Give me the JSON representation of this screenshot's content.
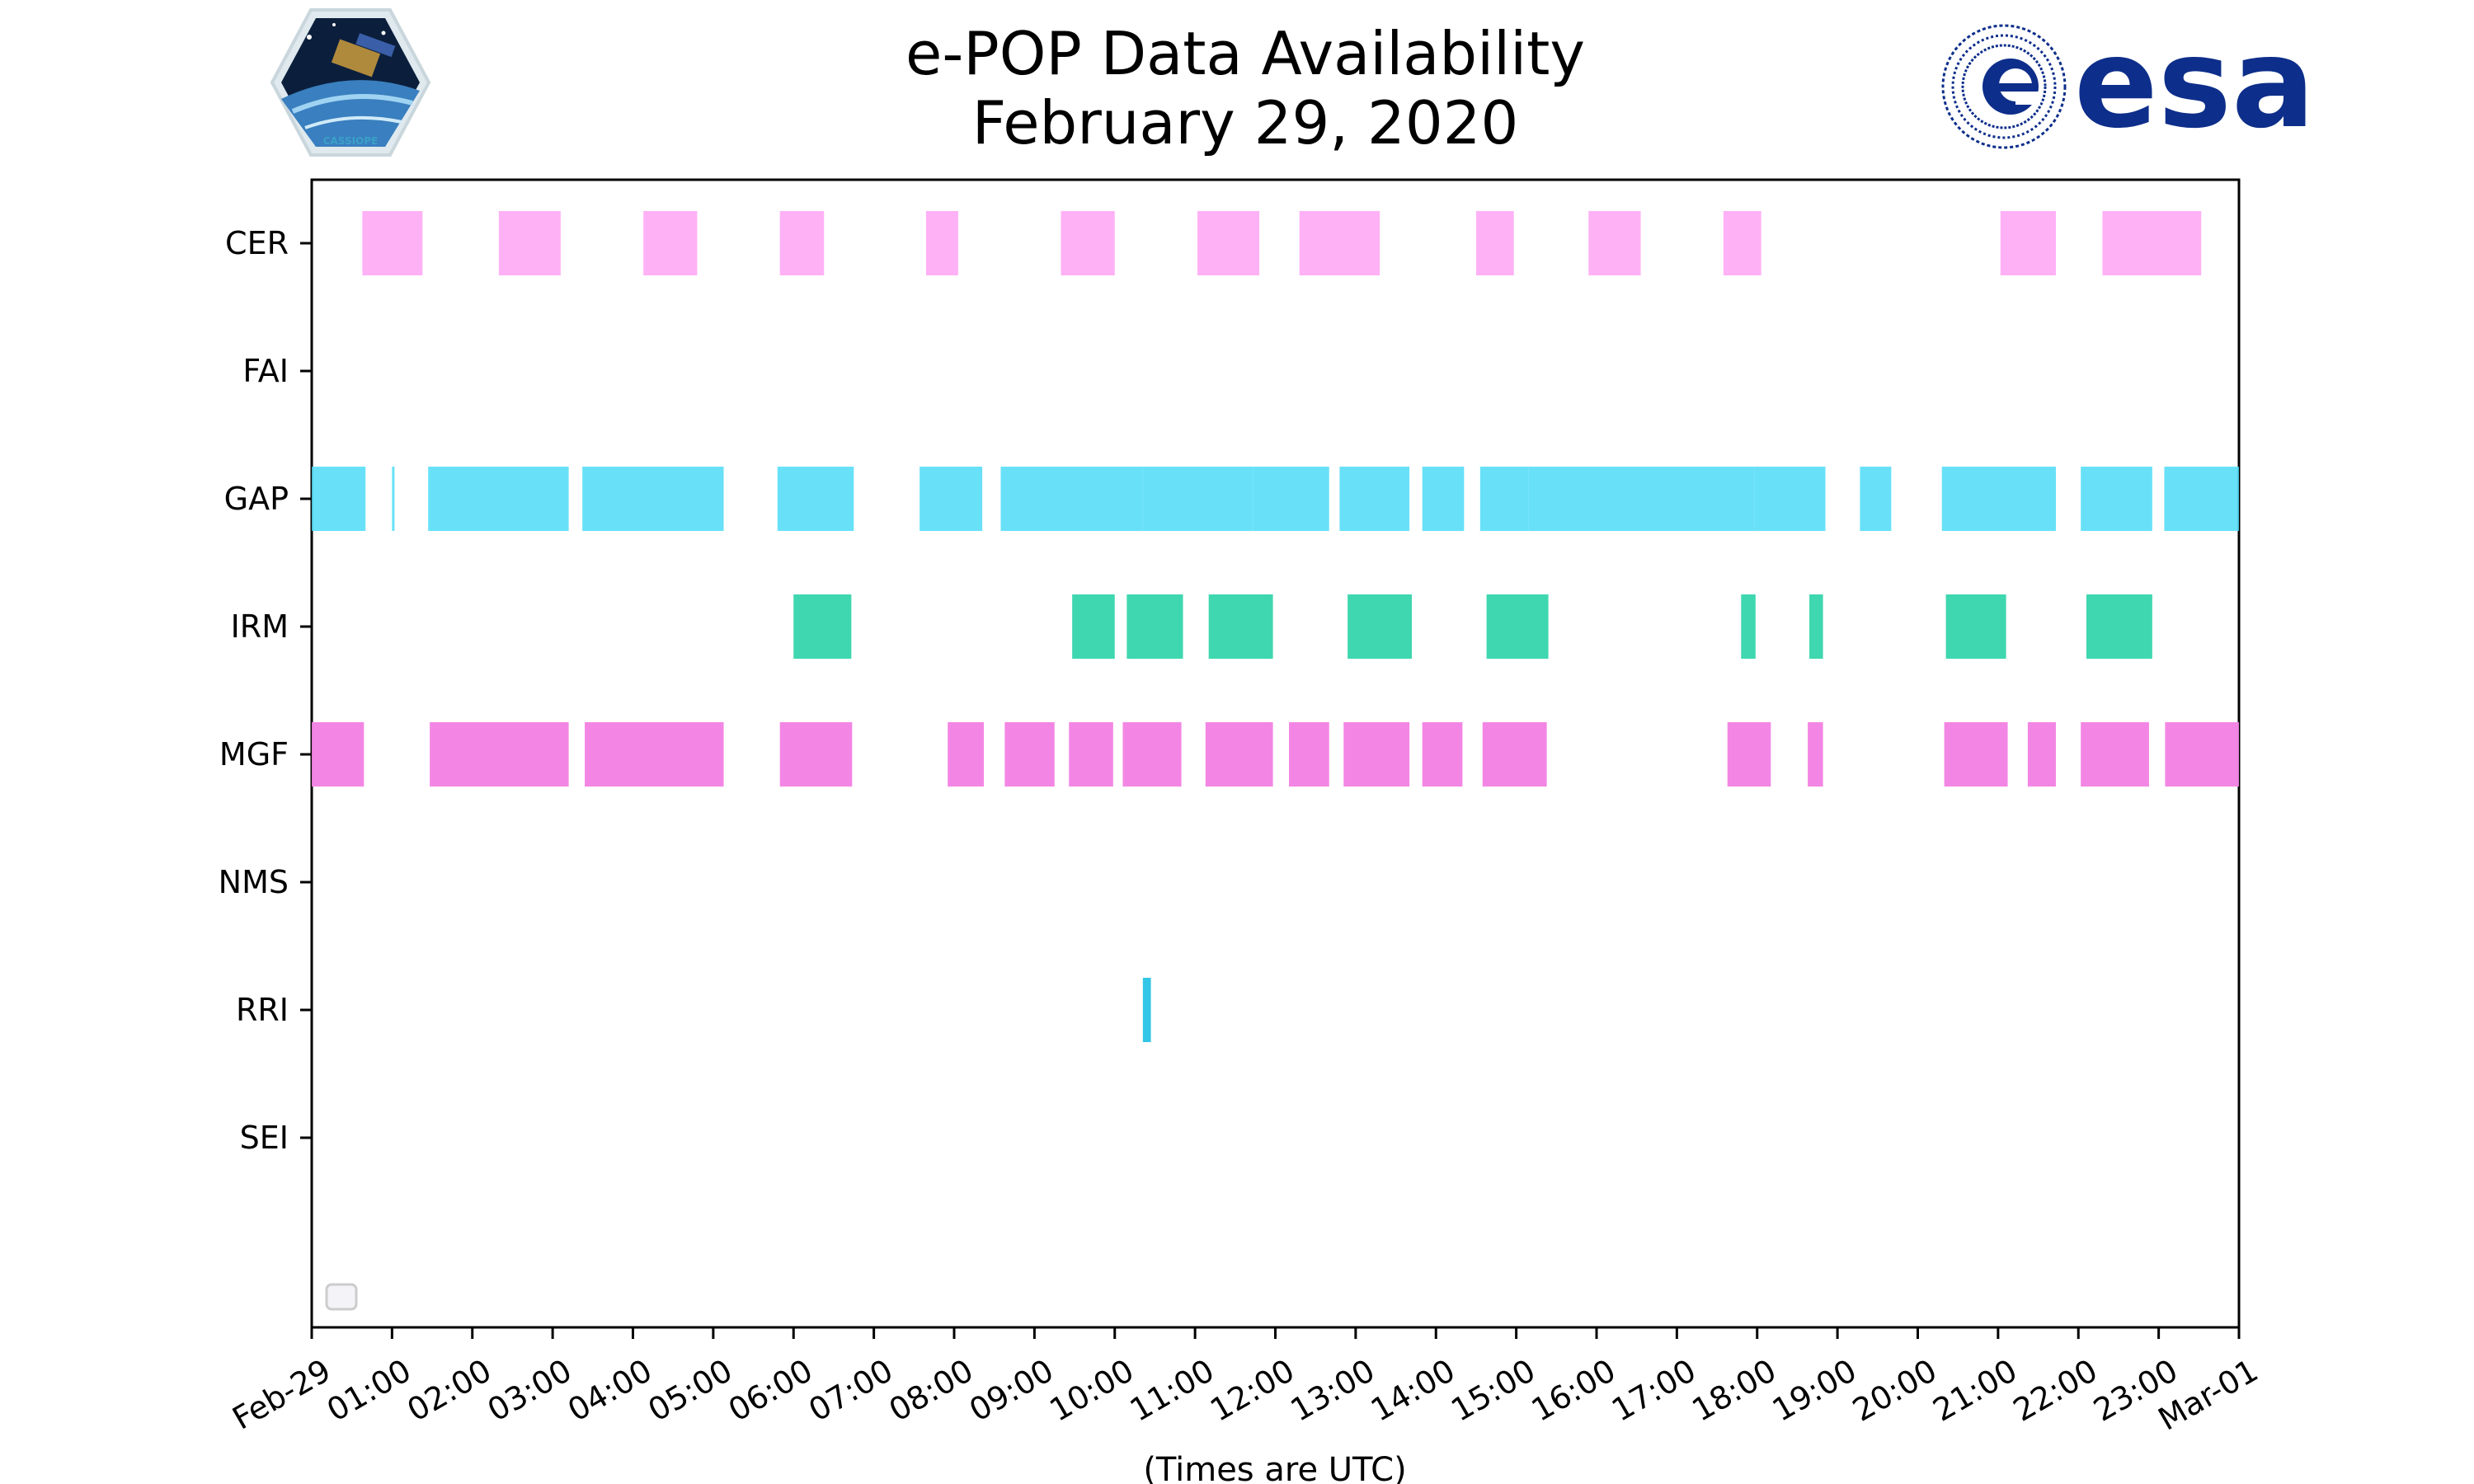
{
  "chart_data": {
    "type": "timeline",
    "title_lines": [
      "e-POP Data Availability",
      "February 29, 2020"
    ],
    "xlabel": "(Times are UTC)",
    "ylabel": "",
    "x_ticks": [
      "Feb-29",
      "01:00",
      "02:00",
      "03:00",
      "04:00",
      "05:00",
      "06:00",
      "07:00",
      "08:00",
      "09:00",
      "10:00",
      "11:00",
      "12:00",
      "13:00",
      "14:00",
      "15:00",
      "16:00",
      "17:00",
      "18:00",
      "19:00",
      "20:00",
      "21:00",
      "22:00",
      "23:00",
      "Mar-01"
    ],
    "xlim_hours": [
      0,
      24
    ],
    "categories": [
      "CER",
      "FAI",
      "GAP",
      "IRM",
      "MGF",
      "NMS",
      "RRI",
      "SEI"
    ],
    "grid": false,
    "legend": {
      "placement": "lower-left",
      "entries": []
    },
    "series": [
      {
        "name": "CER",
        "color": "#FFA8F5",
        "opacity": 0.9,
        "intervals": [
          [
            0.63,
            1.38
          ],
          [
            2.33,
            3.1
          ],
          [
            4.13,
            4.8
          ],
          [
            5.83,
            6.38
          ],
          [
            7.65,
            8.05
          ],
          [
            9.33,
            10.0
          ],
          [
            11.03,
            11.8
          ],
          [
            12.3,
            13.3
          ],
          [
            14.5,
            14.97
          ],
          [
            15.9,
            16.55
          ],
          [
            17.58,
            18.05
          ],
          [
            21.03,
            21.72
          ],
          [
            22.3,
            23.53
          ]
        ]
      },
      {
        "name": "FAI",
        "color": "#e38ac9",
        "opacity": 0.9,
        "intervals": []
      },
      {
        "name": "GAP",
        "color": "#4DDCF7",
        "opacity": 0.85,
        "intervals": [
          [
            0.0,
            0.67
          ],
          [
            1.0,
            1.03
          ],
          [
            1.45,
            3.2
          ],
          [
            3.37,
            5.13
          ],
          [
            5.8,
            6.75
          ],
          [
            7.57,
            8.35
          ],
          [
            8.58,
            10.35
          ],
          [
            10.35,
            11.72
          ],
          [
            11.72,
            12.67
          ],
          [
            12.8,
            13.67
          ],
          [
            13.83,
            14.35
          ],
          [
            14.55,
            15.15
          ],
          [
            15.15,
            17.97
          ],
          [
            17.97,
            18.85
          ],
          [
            19.28,
            19.67
          ],
          [
            20.3,
            21.72
          ],
          [
            22.03,
            22.92
          ],
          [
            23.07,
            24.0
          ]
        ]
      },
      {
        "name": "IRM",
        "color": "#3FD7B0",
        "opacity": 1,
        "intervals": [
          [
            6.0,
            6.72
          ],
          [
            9.47,
            10.0
          ],
          [
            10.15,
            10.85
          ],
          [
            11.17,
            11.97
          ],
          [
            12.9,
            13.7
          ],
          [
            14.63,
            15.4
          ],
          [
            17.8,
            17.98
          ],
          [
            18.65,
            18.82
          ],
          [
            20.35,
            21.1
          ],
          [
            22.1,
            22.92
          ]
        ]
      },
      {
        "name": "MGF",
        "color": "#F27FE3",
        "opacity": 0.95,
        "intervals": [
          [
            0.0,
            0.65
          ],
          [
            1.47,
            3.2
          ],
          [
            3.4,
            5.13
          ],
          [
            5.83,
            6.73
          ],
          [
            7.92,
            8.37
          ],
          [
            8.63,
            9.25
          ],
          [
            9.43,
            9.98
          ],
          [
            10.1,
            10.83
          ],
          [
            11.13,
            11.97
          ],
          [
            12.17,
            12.67
          ],
          [
            12.85,
            13.67
          ],
          [
            13.83,
            14.33
          ],
          [
            14.58,
            15.38
          ],
          [
            17.63,
            18.17
          ],
          [
            18.63,
            18.82
          ],
          [
            20.33,
            21.12
          ],
          [
            21.37,
            21.72
          ],
          [
            22.03,
            22.88
          ],
          [
            23.08,
            24.0
          ]
        ]
      },
      {
        "name": "NMS",
        "color": "#9c7ae3",
        "opacity": 0.9,
        "intervals": []
      },
      {
        "name": "RRI",
        "color": "#33C6E6",
        "opacity": 1,
        "intervals": [
          [
            10.35,
            10.45
          ]
        ]
      },
      {
        "name": "SEI",
        "color": "#7ae3a0",
        "opacity": 0.9,
        "intervals": []
      }
    ]
  },
  "logos": {
    "left": {
      "name": "cassiope-mission-logo",
      "text": "CASSIOPE"
    },
    "right": {
      "name": "esa-logo",
      "text": "esa",
      "color": "#0d2e8a"
    }
  }
}
